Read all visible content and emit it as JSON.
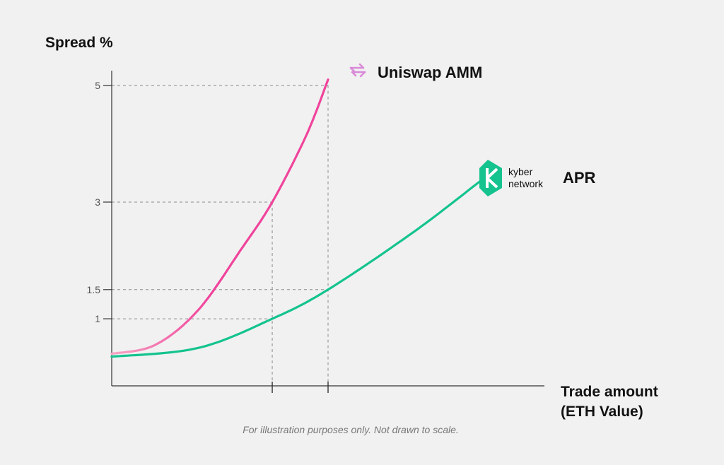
{
  "chart_data": {
    "type": "line",
    "ylabel": "Spread %",
    "xlabel_lines": [
      "Trade amount",
      "(ETH Value)"
    ],
    "y_ticks": [
      {
        "value": 5,
        "label": "5"
      },
      {
        "value": 3,
        "label": "3"
      },
      {
        "value": 1.5,
        "label": "1.5"
      },
      {
        "value": 1,
        "label": "1"
      }
    ],
    "ylim": [
      -0.15,
      5.35
    ],
    "xlim": [
      0,
      10
    ],
    "x_markers": [
      3.71,
      5.0
    ],
    "series": [
      {
        "name": "Uniswap AMM",
        "color": "#f0449c",
        "color_start": "#f7a6c4",
        "icon": "uniswap-swap-icon",
        "x": [
          0,
          1,
          2,
          3,
          3.71,
          4.5,
          5.0
        ],
        "y": [
          0.4,
          0.55,
          1.15,
          2.2,
          3.0,
          4.15,
          5.1
        ]
      },
      {
        "name": "APR",
        "brand_lines": [
          "kyber",
          "network"
        ],
        "color": "#14c38e",
        "icon": "kyber-network-logo-icon",
        "x": [
          0,
          2,
          3.71,
          5.0,
          7,
          8.5
        ],
        "y": [
          0.35,
          0.5,
          1.0,
          1.5,
          2.5,
          3.35
        ]
      }
    ],
    "grid": "dashed guides at marked values",
    "legend": "inline at curve ends"
  },
  "footnote": "For illustration purposes only. Not drawn to scale."
}
